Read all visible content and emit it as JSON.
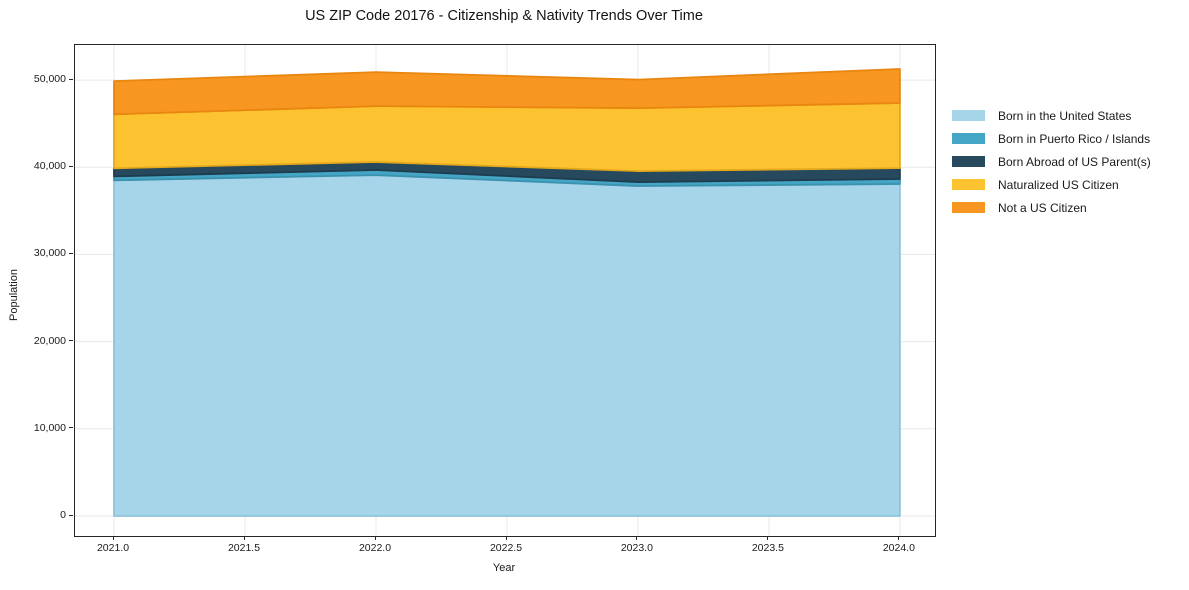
{
  "chart_data": {
    "type": "area",
    "stacked": true,
    "title": "US ZIP Code 20176 - Citizenship & Nativity Trends Over Time",
    "xlabel": "Year",
    "ylabel": "Population",
    "x": [
      2021,
      2022,
      2023,
      2024
    ],
    "series": [
      {
        "name": "Born in the United States",
        "values": [
          38500,
          39100,
          37850,
          38080
        ],
        "fill": "#a6d4e9",
        "edge": "#8fc3db"
      },
      {
        "name": "Born in Puerto Rico / Islands",
        "values": [
          450,
          580,
          450,
          570
        ],
        "fill": "#44a5c5",
        "edge": "#3b92ae"
      },
      {
        "name": "Born Abroad of US Parent(s)",
        "values": [
          930,
          920,
          1260,
          1250
        ],
        "fill": "#26495e",
        "edge": "#1e3c4e"
      },
      {
        "name": "Naturalized US Citizen",
        "values": [
          6200,
          6420,
          7230,
          7470
        ],
        "fill": "#fdc230",
        "edge": "#e3a81c"
      },
      {
        "name": "Not a US Citizen",
        "values": [
          3800,
          3900,
          3260,
          3900
        ],
        "fill": "#f79621",
        "edge": "#e8860f"
      }
    ],
    "stack_totals": [
      49880,
      50920,
      50050,
      51270
    ],
    "xticks": [
      2021.0,
      2021.5,
      2022.0,
      2022.5,
      2023.0,
      2023.5,
      2024.0
    ],
    "xtick_labels": [
      "2021.0",
      "2021.5",
      "2022.0",
      "2022.5",
      "2023.0",
      "2023.5",
      "2024.0"
    ],
    "yticks": [
      0,
      10000,
      20000,
      30000,
      40000,
      50000
    ],
    "ytick_labels": [
      "0",
      "10,000",
      "20,000",
      "30,000",
      "40,000",
      "50,000"
    ],
    "xlim": [
      2020.851,
      2024.134
    ],
    "ylim": [
      -2294,
      54023
    ],
    "grid": true,
    "grid_color": "#e8e8e8",
    "spine_color": "#262626",
    "legend_position": "right-outside"
  }
}
